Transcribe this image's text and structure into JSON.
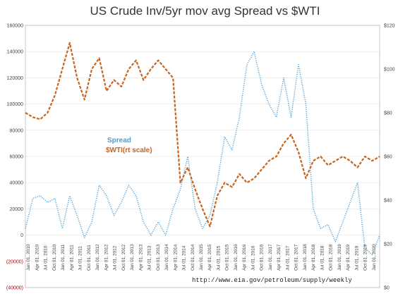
{
  "chart_data": {
    "type": "line",
    "title": "US Crude Inv/5yr mov avg Spread vs $WTI",
    "source_note": "http://www.eia.gov/petroleum/supply/weekly",
    "y_left": {
      "range": [
        -40000,
        160000
      ],
      "ticks": [
        160000,
        140000,
        120000,
        100000,
        80000,
        60000,
        40000,
        20000,
        0,
        -20000,
        -40000
      ],
      "tick_labels": [
        "160000",
        "140000",
        "120000",
        "100000",
        "80000",
        "60000",
        "40000",
        "20000",
        "0",
        "(20000)",
        "(40000)"
      ]
    },
    "y_right": {
      "range": [
        0,
        120
      ],
      "ticks": [
        120,
        100,
        80,
        60,
        40,
        20,
        0
      ],
      "tick_labels": [
        "$120",
        "$100",
        "$80",
        "$60",
        "$40",
        "$20",
        "$0"
      ]
    },
    "x_labels": [
      "Jan 01, 2010",
      "Apr 01, 2010",
      "Jul 01, 2010",
      "Oct 01, 2010",
      "Jan 01, 2011",
      "Apr 01, 2011",
      "Jul 01, 2011",
      "Oct 01, 2011",
      "Jan 01, 2012",
      "Apr 01, 2012",
      "Jul 01, 2012",
      "Oct 01, 2012",
      "Jan 01, 2013",
      "Apr 01, 2013",
      "Jul 01, 2013",
      "Oct 01, 2013",
      "Jan 01, 2014",
      "Apr 01, 2014",
      "Jul 01, 2014",
      "Oct 01, 2014",
      "Jan 01, 2015",
      "Apr 01, 2015",
      "Jul 01, 2015",
      "Oct 01, 2015",
      "Jan 01, 2016",
      "Apr 01, 2016",
      "Jul 01, 2016",
      "Oct 01, 2016",
      "Jan 01, 2017",
      "Apr 01, 2017",
      "Jul 01, 2017",
      "Oct 01, 2017",
      "Jan 01, 2018",
      "Apr 01, 2018",
      "Jul 01, 2018",
      "Oct 01, 2018",
      "Jan 01, 2019",
      "Apr 01, 2019",
      "Jul 01, 2019",
      "Oct 01, 2019",
      "Jan 01, 2020"
    ],
    "series": [
      {
        "name": "Spread",
        "axis": "left",
        "color": "#4a9fd6",
        "style": "dotted",
        "values": [
          5000,
          28000,
          30000,
          25000,
          28000,
          5000,
          30000,
          15000,
          -2000,
          10000,
          38000,
          30000,
          15000,
          25000,
          38000,
          30000,
          10000,
          0,
          10000,
          0,
          20000,
          35000,
          60000,
          20000,
          5000,
          15000,
          40000,
          75000,
          65000,
          90000,
          130000,
          140000,
          115000,
          100000,
          90000,
          120000,
          90000,
          130000,
          100000,
          20000,
          5000,
          8000,
          -5000,
          10000,
          25000,
          40000,
          -10000,
          -15000,
          0
        ]
      },
      {
        "name": "$WTI(rt scale)",
        "axis": "right",
        "color": "#c8641e",
        "style": "dashed",
        "values": [
          80,
          78,
          77,
          80,
          88,
          100,
          112,
          96,
          86,
          100,
          105,
          90,
          95,
          92,
          100,
          104,
          95,
          100,
          104,
          100,
          96,
          48,
          55,
          45,
          36,
          28,
          42,
          48,
          46,
          52,
          48,
          50,
          54,
          58,
          60,
          66,
          70,
          62,
          50,
          58,
          60,
          56,
          58,
          60,
          58,
          55,
          60,
          58,
          60
        ]
      }
    ]
  }
}
